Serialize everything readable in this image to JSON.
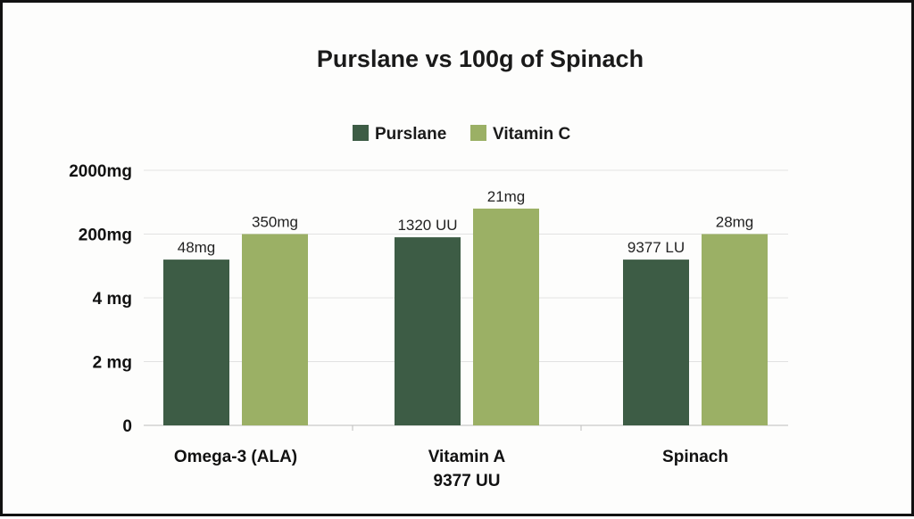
{
  "chart_data": {
    "type": "bar",
    "title": "Purslane vs 100g of Spinach",
    "legend_placement": "top-center",
    "grid": true,
    "y_axis": {
      "scale": "categorical-nonuniform",
      "ticks": [
        "0",
        "2 mg",
        "4 mg",
        "200mg",
        "2000mg"
      ]
    },
    "categories": [
      {
        "label_lines": [
          "Omega-3 (ALA)"
        ]
      },
      {
        "label_lines": [
          "Vitamin A",
          "9377 UU"
        ]
      },
      {
        "label_lines": [
          "Spinach"
        ]
      }
    ],
    "series": [
      {
        "name": "Purslane",
        "color": "#3d5c45",
        "levels": [
          2.6,
          2.95,
          2.6
        ],
        "labels": [
          "48mg",
          "1320 UU",
          "9377 LU"
        ]
      },
      {
        "name": "Vitamin C",
        "color": "#9bb065",
        "levels": [
          3.0,
          3.4,
          3.0
        ],
        "labels": [
          "350mg",
          "21mg",
          "28mg"
        ]
      }
    ]
  }
}
